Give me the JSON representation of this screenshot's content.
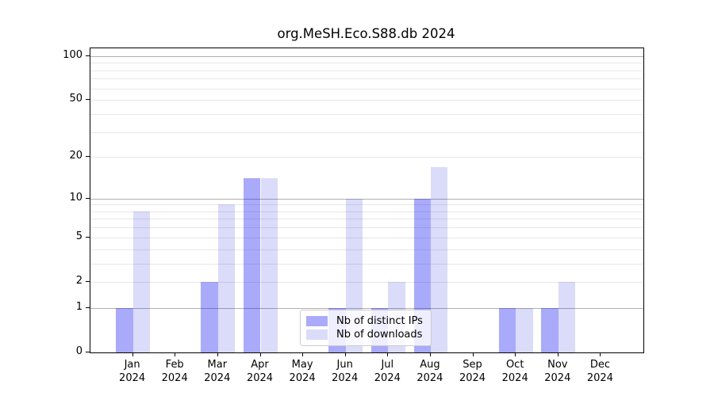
{
  "title": "org.MeSH.Eco.S88.db 2024",
  "chart_data": {
    "type": "bar",
    "title": "org.MeSH.Eco.S88.db 2024",
    "x_months": [
      "Jan",
      "Feb",
      "Mar",
      "Apr",
      "May",
      "Jun",
      "Jul",
      "Aug",
      "Sep",
      "Oct",
      "Nov",
      "Dec"
    ],
    "x_year": "2024",
    "series": [
      {
        "name": "Nb of distinct IPs",
        "color": "rgba(12,12,241,0.35)",
        "values": [
          1,
          0,
          2,
          14,
          0,
          1,
          1,
          10,
          0,
          1,
          1,
          0
        ]
      },
      {
        "name": "Nb of downloads",
        "color": "rgba(15,15,222,0.15)",
        "values": [
          8,
          0,
          9,
          14,
          0,
          10,
          2,
          17,
          0,
          1,
          2,
          0
        ]
      }
    ],
    "y_ticks": [
      0,
      1,
      2,
      5,
      10,
      20,
      50,
      100
    ],
    "grid_major_values": [
      1,
      10,
      100
    ],
    "grid_minor_values": [
      2,
      3,
      4,
      5,
      6,
      7,
      8,
      9,
      20,
      30,
      40,
      50,
      60,
      70,
      80,
      90
    ],
    "y_scale": "log10(1+value)",
    "ylim": [
      0,
      113
    ],
    "grid": "horizontal",
    "legend_position": "lower center"
  },
  "colors": {
    "bar_distinct_ips": "rgba(12,12,241,0.35)",
    "bar_downloads": "rgba(15,15,222,0.15)",
    "grid_major": "#b0b0b0",
    "grid_minor": "#e7e7e7",
    "axis": "#000000",
    "legend_border": "#cccccc"
  }
}
